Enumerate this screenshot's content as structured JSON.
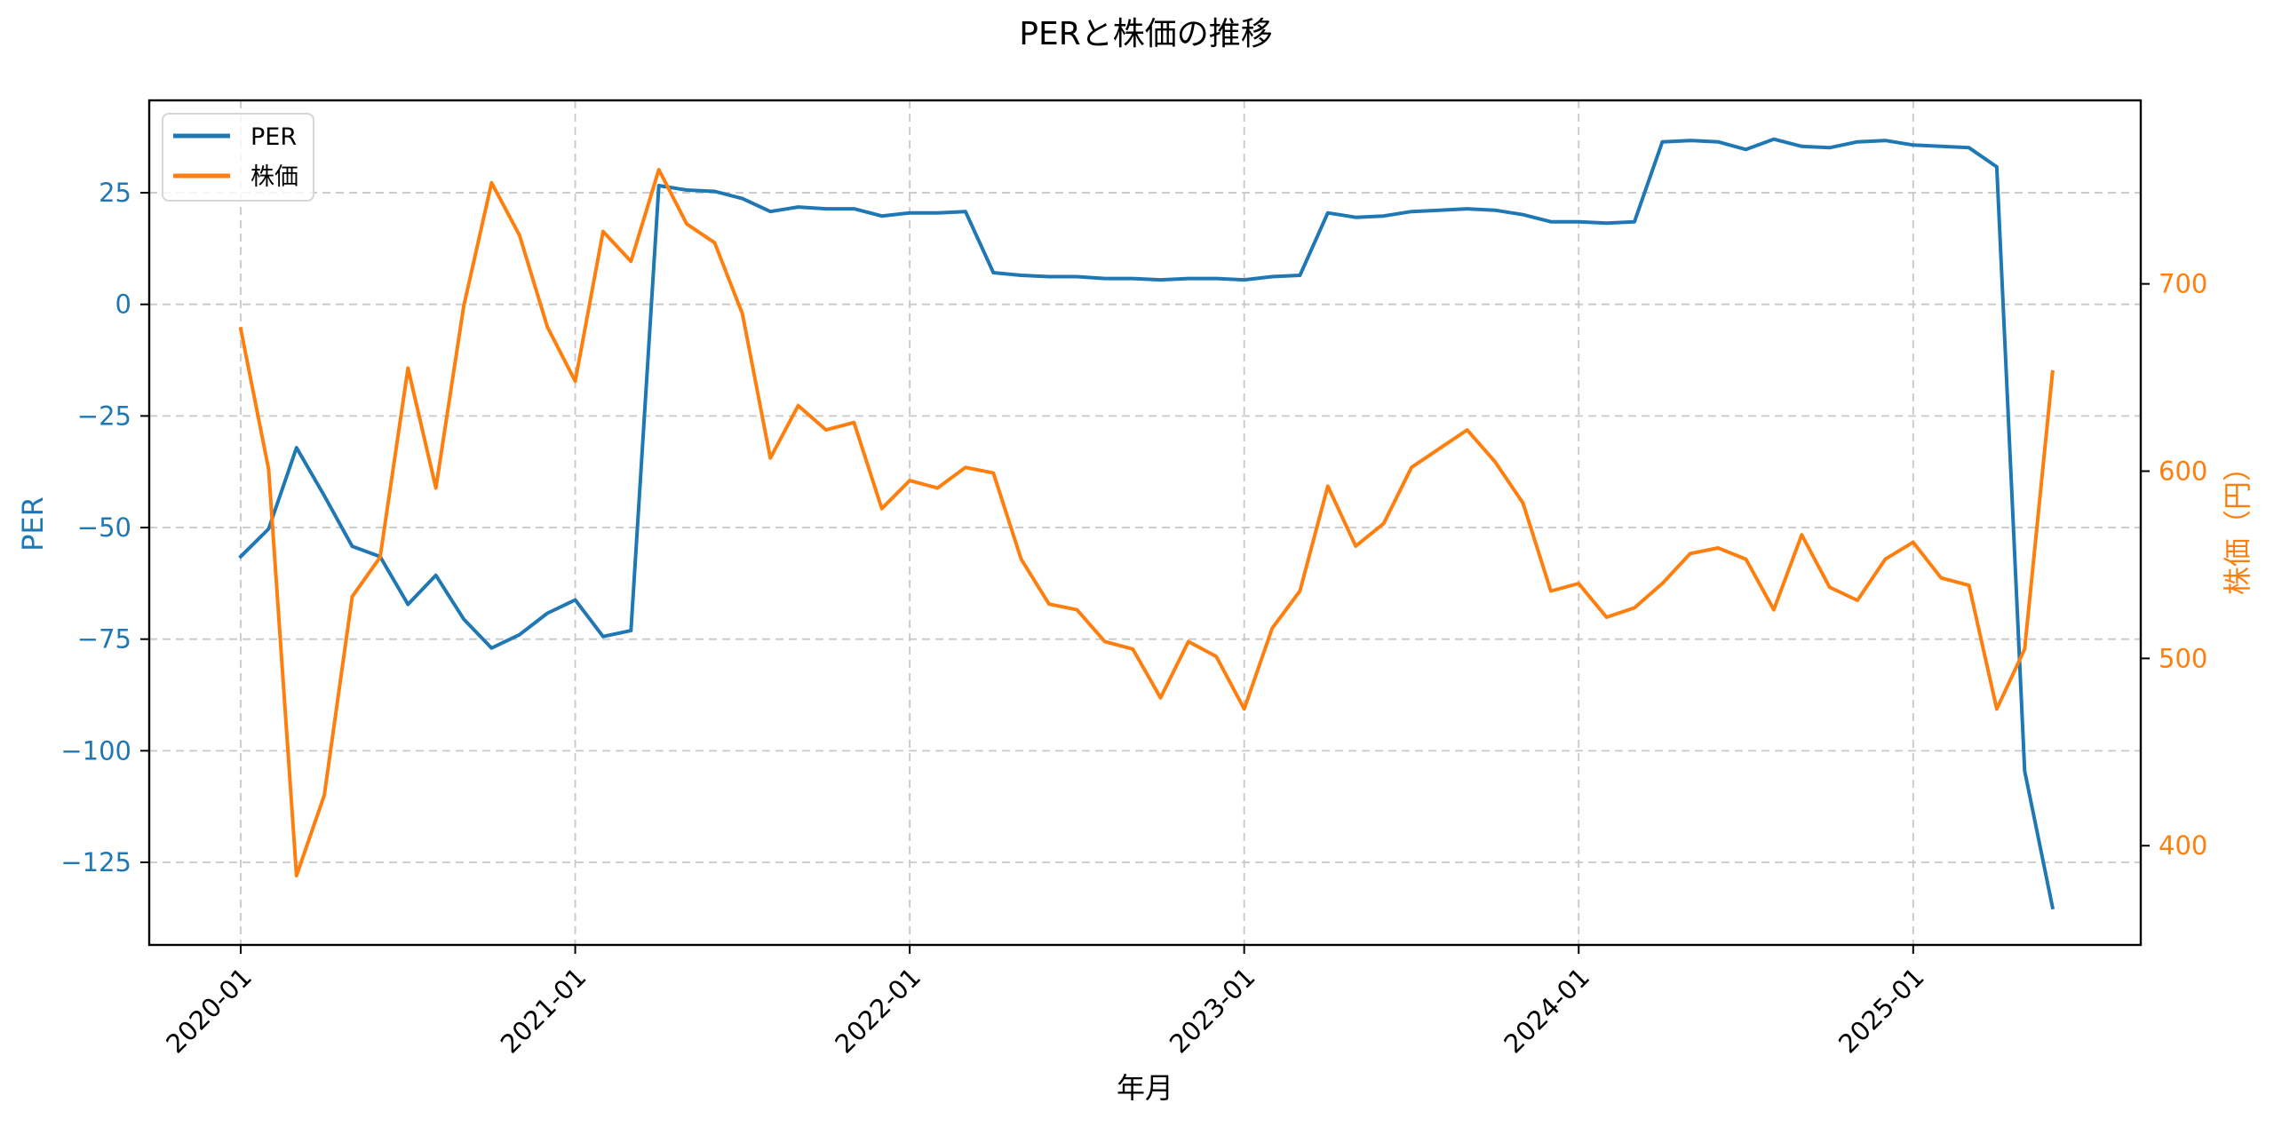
{
  "chart_data": {
    "type": "line",
    "title": "PERと株価の推移",
    "xlabel": "年月",
    "ylabel_left": "PER",
    "ylabel_right": "株価（円）",
    "x_tick_labels": [
      "2020-01",
      "2021-01",
      "2022-01",
      "2023-01",
      "2024-01",
      "2025-01"
    ],
    "y_left_ticks": [
      25,
      0,
      -25,
      -50,
      -75,
      -100,
      -125
    ],
    "y_left_tick_labels": [
      "25",
      "0",
      "−25",
      "−50",
      "−75",
      "−100",
      "−125"
    ],
    "y_right_ticks": [
      700,
      600,
      500,
      400
    ],
    "y_right_tick_labels": [
      "700",
      "600",
      "500",
      "400"
    ],
    "ylim_left": [
      -143.5,
      45.7
    ],
    "ylim_right": [
      347,
      798
    ],
    "grid": true,
    "legend_position": "upper left",
    "x": [
      "2020-01",
      "2020-02",
      "2020-03",
      "2020-04",
      "2020-05",
      "2020-06",
      "2020-07",
      "2020-08",
      "2020-09",
      "2020-10",
      "2020-11",
      "2020-12",
      "2021-01",
      "2021-02",
      "2021-03",
      "2021-04",
      "2021-05",
      "2021-06",
      "2021-07",
      "2021-08",
      "2021-09",
      "2021-10",
      "2021-11",
      "2021-12",
      "2022-01",
      "2022-02",
      "2022-03",
      "2022-04",
      "2022-05",
      "2022-06",
      "2022-07",
      "2022-08",
      "2022-09",
      "2022-10",
      "2022-11",
      "2022-12",
      "2023-01",
      "2023-02",
      "2023-03",
      "2023-04",
      "2023-05",
      "2023-06",
      "2023-07",
      "2023-08",
      "2023-09",
      "2023-10",
      "2023-11",
      "2023-12",
      "2024-01",
      "2024-02",
      "2024-03",
      "2024-04",
      "2024-05",
      "2024-06",
      "2024-07",
      "2024-08",
      "2024-09",
      "2024-10",
      "2024-11",
      "2024-12",
      "2025-01",
      "2025-02",
      "2025-03",
      "2025-04",
      "2025-05",
      "2025-06"
    ],
    "series": [
      {
        "name": "PER",
        "axis": "left",
        "color": "#1f77b4",
        "values": [
          -56.5,
          -50.3,
          -32.1,
          -42.9,
          -54.2,
          -56.5,
          -67.2,
          -60.7,
          -70.5,
          -77.0,
          -74.0,
          -69.2,
          -66.2,
          -74.4,
          -73.1,
          26.6,
          25.6,
          25.3,
          23.7,
          20.8,
          21.8,
          21.4,
          21.4,
          19.8,
          20.5,
          20.5,
          20.8,
          7.1,
          6.5,
          6.2,
          6.2,
          5.8,
          5.8,
          5.5,
          5.8,
          5.8,
          5.5,
          6.2,
          6.5,
          20.5,
          19.5,
          19.8,
          20.8,
          21.1,
          21.4,
          21.1,
          20.1,
          18.5,
          18.5,
          18.2,
          18.5,
          36.4,
          36.7,
          36.4,
          34.7,
          37.0,
          35.4,
          35.1,
          36.4,
          36.7,
          35.7,
          35.4,
          35.1,
          30.8,
          -104.5,
          -135.1
        ]
      },
      {
        "name": "株価",
        "axis": "right",
        "color": "#ff7f0e",
        "values": [
          676,
          601,
          384,
          427,
          533,
          554,
          655,
          591,
          688,
          754,
          726,
          677,
          648,
          728,
          712,
          761,
          732,
          722,
          684,
          607,
          635,
          622,
          626,
          580,
          595,
          591,
          602,
          599,
          553,
          529,
          526,
          509,
          505,
          479,
          509,
          501,
          473,
          516,
          536,
          592,
          560,
          572,
          602,
          612,
          622,
          605,
          583,
          536,
          540,
          522,
          527,
          540,
          556,
          559,
          553,
          526,
          566,
          538,
          531,
          553,
          562,
          543,
          539,
          473,
          505,
          653
        ]
      }
    ]
  },
  "legend": {
    "items": [
      {
        "label": "PER",
        "color": "#1f77b4"
      },
      {
        "label": "株価",
        "color": "#ff7f0e"
      }
    ]
  },
  "colors": {
    "per": "#1f77b4",
    "price": "#ff7f0e",
    "grid": "#c8c8c8",
    "axis": "#000000"
  }
}
